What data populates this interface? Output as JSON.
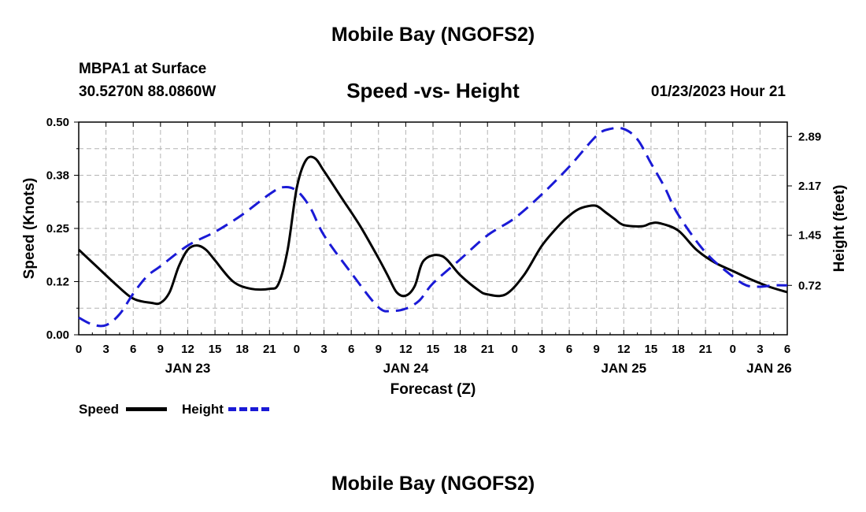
{
  "header": {
    "title": "Mobile Bay (NGOFS2)",
    "station": "MBPA1 at Surface",
    "coords": "30.5270N  88.0860W",
    "subtitle": "Speed -vs- Height",
    "run_time": "01/23/2023 Hour 21"
  },
  "footer": {
    "title": "Mobile Bay (NGOFS2)"
  },
  "legend": {
    "speed_label": "Speed",
    "height_label": "Height"
  },
  "colors": {
    "speed": "#000000",
    "height": "#1a1ad6",
    "grid": "#b4b4b4"
  },
  "chart_data": {
    "type": "line",
    "title": "Speed -vs- Height",
    "xlabel": "Forecast (Z)",
    "ylabel": "Speed (Knots)",
    "y2label": "Height (feet)",
    "x_unit": "hours since 2023-01-23 00Z",
    "xlim": [
      0,
      78
    ],
    "ylim": [
      0,
      0.5
    ],
    "y2lim": [
      0,
      3.1
    ],
    "x_ticks": [
      0,
      3,
      6,
      9,
      12,
      15,
      18,
      21,
      24,
      27,
      30,
      33,
      36,
      39,
      42,
      45,
      48,
      51,
      54,
      57,
      60,
      63,
      66,
      69,
      72,
      75,
      78
    ],
    "x_tick_labels": [
      "0",
      "3",
      "6",
      "9",
      "12",
      "15",
      "18",
      "21",
      "0",
      "3",
      "6",
      "9",
      "12",
      "15",
      "18",
      "21",
      "0",
      "3",
      "6",
      "9",
      "12",
      "15",
      "18",
      "21",
      "0",
      "3",
      "6"
    ],
    "day_labels": [
      {
        "x": 12,
        "label": "JAN 23"
      },
      {
        "x": 36,
        "label": "JAN 24"
      },
      {
        "x": 60,
        "label": "JAN 25"
      },
      {
        "x": 76,
        "label": "JAN 26"
      }
    ],
    "y_ticks": [
      0,
      0.125,
      0.25,
      0.375,
      0.5
    ],
    "y_tick_labels": [
      "0.00",
      "0.12",
      "0.25",
      "0.38",
      "0.50"
    ],
    "y2_ticks": [
      0.72,
      1.45,
      2.17,
      2.89
    ],
    "y2_tick_labels": [
      "0.72",
      "1.45",
      "2.17",
      "2.89"
    ],
    "grid": true,
    "series": [
      {
        "name": "Speed",
        "axis": "left",
        "style": "solid",
        "x": [
          0,
          2,
          4,
          6,
          8,
          9,
          10,
          11,
          12,
          13,
          14,
          15,
          17,
          19,
          21,
          22,
          23,
          24,
          25,
          26,
          27,
          29,
          31,
          33,
          34,
          35,
          36,
          37,
          38,
          40,
          42,
          44,
          45,
          47,
          49,
          51,
          53,
          54,
          55,
          56,
          57,
          58,
          59,
          60,
          62,
          63,
          64,
          66,
          68,
          70,
          72,
          74,
          76,
          78
        ],
        "values": [
          0.2,
          0.16,
          0.12,
          0.085,
          0.075,
          0.075,
          0.1,
          0.16,
          0.2,
          0.21,
          0.2,
          0.175,
          0.125,
          0.108,
          0.108,
          0.12,
          0.2,
          0.345,
          0.41,
          0.415,
          0.385,
          0.32,
          0.255,
          0.18,
          0.14,
          0.1,
          0.092,
          0.115,
          0.175,
          0.185,
          0.14,
          0.105,
          0.095,
          0.095,
          0.14,
          0.21,
          0.26,
          0.28,
          0.295,
          0.302,
          0.303,
          0.288,
          0.272,
          0.258,
          0.255,
          0.262,
          0.262,
          0.245,
          0.2,
          0.17,
          0.15,
          0.13,
          0.113,
          0.1
        ]
      },
      {
        "name": "Height",
        "axis": "right",
        "style": "dashed",
        "x": [
          0,
          1.5,
          3,
          4.5,
          6,
          7.5,
          9,
          12,
          15,
          18,
          21,
          22.5,
          24,
          25.5,
          27,
          30,
          33,
          34.5,
          36,
          37.5,
          39,
          42,
          45,
          48,
          51,
          54,
          57,
          58.5,
          60,
          61.5,
          63,
          64.5,
          66,
          69,
          72,
          73.5,
          75,
          76.5,
          78
        ],
        "values": [
          0.25,
          0.15,
          0.14,
          0.3,
          0.6,
          0.85,
          1.0,
          1.3,
          1.5,
          1.75,
          2.05,
          2.15,
          2.1,
          1.85,
          1.45,
          0.9,
          0.4,
          0.35,
          0.38,
          0.5,
          0.75,
          1.1,
          1.45,
          1.7,
          2.05,
          2.45,
          2.9,
          3.0,
          3.0,
          2.85,
          2.5,
          2.15,
          1.75,
          1.2,
          0.85,
          0.72,
          0.7,
          0.72,
          0.72
        ]
      }
    ]
  }
}
